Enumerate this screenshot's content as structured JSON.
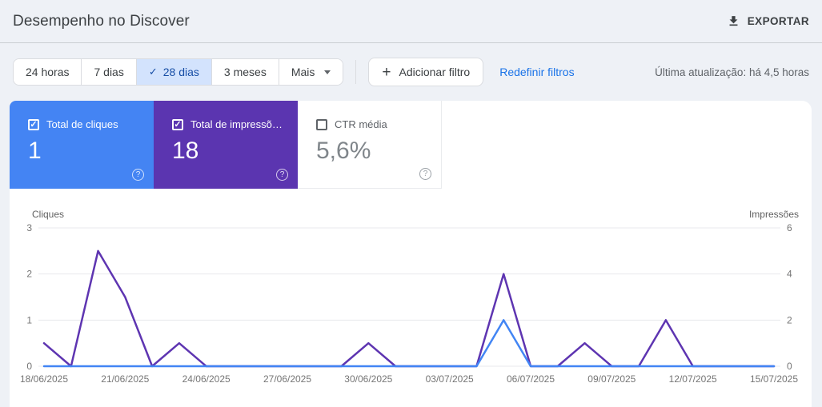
{
  "header": {
    "title": "Desempenho no Discover",
    "export_label": "EXPORTAR"
  },
  "filters": {
    "date_chips": [
      {
        "label": "24 horas",
        "selected": false,
        "dropdown": false
      },
      {
        "label": "7 dias",
        "selected": false,
        "dropdown": false
      },
      {
        "label": "28 dias",
        "selected": true,
        "dropdown": false
      },
      {
        "label": "3 meses",
        "selected": false,
        "dropdown": false
      },
      {
        "label": "Mais",
        "selected": false,
        "dropdown": true
      }
    ],
    "add_filter_label": "Adicionar filtro",
    "reset_filters_label": "Redefinir filtros",
    "last_update": "Última atualização: há 4,5 horas"
  },
  "metrics": {
    "cards": [
      {
        "label": "Total de cliques",
        "value": "1",
        "checked": true,
        "bg": "#4484f3",
        "style": "dark"
      },
      {
        "label": "Total de impressõ…",
        "value": "18",
        "checked": true,
        "bg": "#5b35b0",
        "style": "dark"
      },
      {
        "label": "CTR média",
        "value": "5,6%",
        "checked": false,
        "bg": "#ffffff",
        "style": "light"
      }
    ]
  },
  "chart_data": {
    "type": "line",
    "x": [
      "18/06/2025",
      "19/06/2025",
      "20/06/2025",
      "21/06/2025",
      "22/06/2025",
      "23/06/2025",
      "24/06/2025",
      "25/06/2025",
      "26/06/2025",
      "27/06/2025",
      "28/06/2025",
      "29/06/2025",
      "30/06/2025",
      "01/07/2025",
      "02/07/2025",
      "03/07/2025",
      "04/07/2025",
      "05/07/2025",
      "06/07/2025",
      "07/07/2025",
      "08/07/2025",
      "09/07/2025",
      "10/07/2025",
      "11/07/2025",
      "12/07/2025",
      "13/07/2025",
      "14/07/2025",
      "15/07/2025"
    ],
    "x_tick_every": 3,
    "series": [
      {
        "name": "Cliques",
        "axis": "left",
        "color": "#4285f4",
        "values": [
          0,
          0,
          0,
          0,
          0,
          0,
          0,
          0,
          0,
          0,
          0,
          0,
          0,
          0,
          0,
          0,
          0,
          1,
          0,
          0,
          0,
          0,
          0,
          0,
          0,
          0,
          0,
          0
        ]
      },
      {
        "name": "Impressões",
        "axis": "right",
        "color": "#5e35b1",
        "values": [
          1,
          0,
          5,
          3,
          0,
          1,
          0,
          0,
          0,
          0,
          0,
          0,
          1,
          0,
          0,
          0,
          0,
          4,
          0,
          0,
          1,
          0,
          0,
          2,
          0,
          0,
          0,
          0
        ]
      }
    ],
    "left_axis": {
      "label": "Cliques",
      "ticks": [
        3,
        2,
        1,
        0
      ],
      "max": 3
    },
    "right_axis": {
      "label": "Impressões",
      "ticks": [
        6,
        4,
        2,
        0
      ],
      "max": 6
    },
    "grid": true,
    "grid_color": "#e8eaed"
  }
}
